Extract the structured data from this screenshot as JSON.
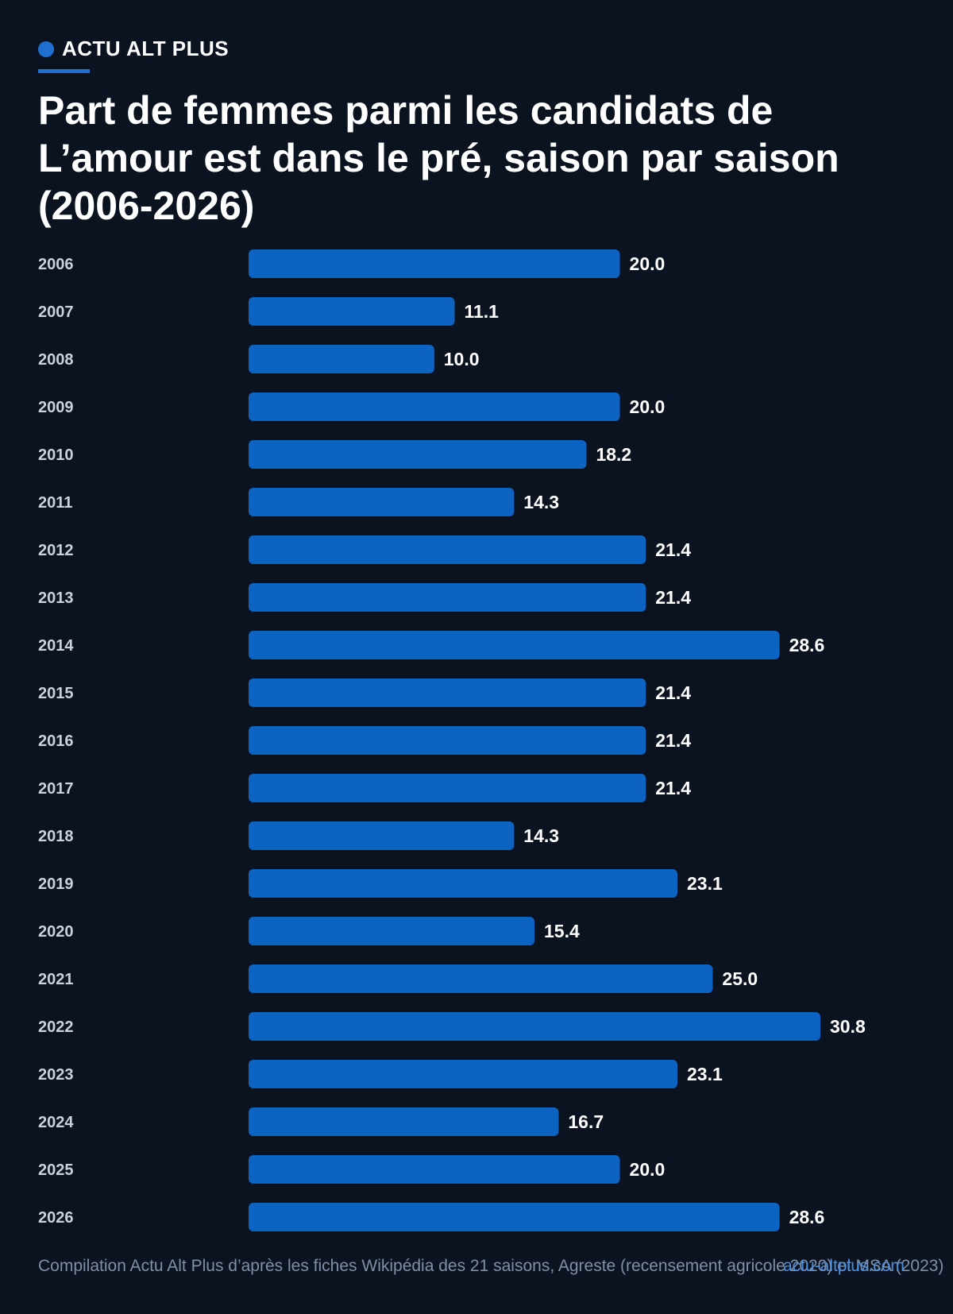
{
  "brand": {
    "name": "ACTU ALT PLUS"
  },
  "chart_data": {
    "type": "bar",
    "orientation": "horizontal",
    "title": "Part de femmes parmi les candidats de L’amour est dans le pré, saison par saison (2006-2026)",
    "categories": [
      "2006",
      "2007",
      "2008",
      "2009",
      "2010",
      "2011",
      "2012",
      "2013",
      "2014",
      "2015",
      "2016",
      "2017",
      "2018",
      "2019",
      "2020",
      "2021",
      "2022",
      "2023",
      "2024",
      "2025",
      "2026"
    ],
    "values": [
      20.0,
      11.1,
      10.0,
      20.0,
      18.2,
      14.3,
      21.4,
      21.4,
      28.6,
      21.4,
      21.4,
      21.4,
      14.3,
      23.1,
      15.4,
      25.0,
      30.8,
      23.1,
      16.7,
      20.0,
      28.6
    ],
    "value_labels": [
      "20.0",
      "11.1",
      "10.0",
      "20.0",
      "18.2",
      "14.3",
      "21.4",
      "21.4",
      "28.6",
      "21.4",
      "21.4",
      "21.4",
      "14.3",
      "23.1",
      "15.4",
      "25.0",
      "30.8",
      "23.1",
      "16.7",
      "20.0",
      "28.6"
    ],
    "xlabel": "",
    "ylabel": "",
    "xlim": [
      0,
      30.8
    ],
    "grid": false,
    "legend": "none",
    "bar_color": "#0d63c1"
  },
  "footer": {
    "source": "Compilation Actu Alt Plus d’après les fiches Wikipédia des 21 saisons, Agreste (recensement agricole 2020) et MSA (2023)",
    "site": "actu-altplus.com"
  },
  "colors": {
    "background": "#0b1320",
    "accent": "#1e6fd0",
    "bar": "#0d63c1"
  }
}
